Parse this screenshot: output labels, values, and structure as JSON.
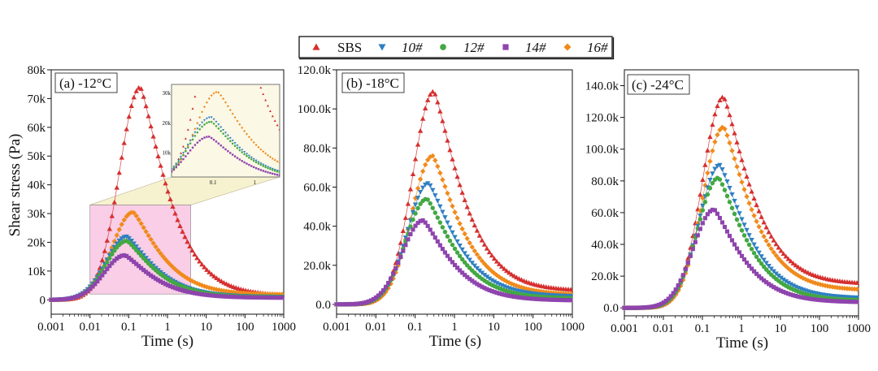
{
  "legend": {
    "items": [
      {
        "label": "SBS",
        "color": "#d62f2f",
        "marker": "triangle-up"
      },
      {
        "label": "10#",
        "color": "#2f7fc1",
        "marker": "triangle-down"
      },
      {
        "label": "12#",
        "color": "#43a843",
        "marker": "circle"
      },
      {
        "label": "14#",
        "color": "#8e44ad",
        "marker": "square"
      },
      {
        "label": "16#",
        "color": "#f08a1c",
        "marker": "diamond"
      }
    ]
  },
  "chart_data": [
    {
      "type": "scatter",
      "panel_label": "(a) -12°C",
      "xlabel": "Time (s)",
      "ylabel": "Shear stress (Pa)",
      "xscale": "log",
      "xlim": [
        0.001,
        1000
      ],
      "ylim": [
        -5000,
        80000
      ],
      "x_ticks": [
        "0.001",
        "0.01",
        "0.1",
        "1",
        "10",
        "100",
        "1000"
      ],
      "y_ticks": [
        {
          "value": 0,
          "label": "0"
        },
        {
          "value": 10000,
          "label": "10k"
        },
        {
          "value": 20000,
          "label": "20k"
        },
        {
          "value": 30000,
          "label": "30k"
        },
        {
          "value": 40000,
          "label": "40k"
        },
        {
          "value": 50000,
          "label": "50k"
        },
        {
          "value": 60000,
          "label": "60k"
        },
        {
          "value": 70000,
          "label": "70k"
        },
        {
          "value": 80000,
          "label": "80k"
        }
      ],
      "series": [
        {
          "name": "SBS",
          "peak": 74000,
          "peak_time": 0.2,
          "final": 1500
        },
        {
          "name": "10#",
          "peak": 22000,
          "peak_time": 0.09,
          "final": 1000
        },
        {
          "name": "12#",
          "peak": 20500,
          "peak_time": 0.09,
          "final": 900
        },
        {
          "name": "14#",
          "peak": 15500,
          "peak_time": 0.08,
          "final": 700
        },
        {
          "name": "16#",
          "peak": 30500,
          "peak_time": 0.13,
          "final": 1800
        }
      ],
      "highlight_box": {
        "x_range": [
          0.01,
          4
        ],
        "y_range": [
          2000,
          33000
        ]
      },
      "inset": {
        "x_ticks": [
          "0.1",
          "1"
        ],
        "y_ticks": [
          "10k",
          "20k",
          "30k"
        ]
      }
    },
    {
      "type": "scatter",
      "panel_label": "(b) -18°C",
      "xlabel": "Time (s)",
      "ylabel": "",
      "xscale": "log",
      "xlim": [
        0.001,
        1000
      ],
      "ylim": [
        -5000,
        120000
      ],
      "x_ticks": [
        "0.001",
        "0.01",
        "0.1",
        "1",
        "10",
        "100",
        "1000"
      ],
      "y_ticks": [
        {
          "value": 0,
          "label": "0.0"
        },
        {
          "value": 20000,
          "label": "20.0k"
        },
        {
          "value": 40000,
          "label": "40.0k"
        },
        {
          "value": 60000,
          "label": "60.0k"
        },
        {
          "value": 80000,
          "label": "80.0k"
        },
        {
          "value": 100000,
          "label": "100.0k"
        },
        {
          "value": 120000,
          "label": "120.0k"
        }
      ],
      "series": [
        {
          "name": "SBS",
          "peak": 109000,
          "peak_time": 0.3,
          "final": 7000
        },
        {
          "name": "10#",
          "peak": 62000,
          "peak_time": 0.22,
          "final": 4000
        },
        {
          "name": "12#",
          "peak": 54000,
          "peak_time": 0.2,
          "final": 3000
        },
        {
          "name": "14#",
          "peak": 43000,
          "peak_time": 0.16,
          "final": 2000
        },
        {
          "name": "16#",
          "peak": 76000,
          "peak_time": 0.28,
          "final": 5000
        }
      ]
    },
    {
      "type": "scatter",
      "panel_label": "(c) -24°C",
      "xlabel": "Time (s)",
      "ylabel": "",
      "xscale": "log",
      "xlim": [
        0.001,
        1000
      ],
      "ylim": [
        -5000,
        150000
      ],
      "x_ticks": [
        "0.001",
        "0.01",
        "0.1",
        "1",
        "10",
        "100",
        "1000"
      ],
      "y_ticks": [
        {
          "value": 0,
          "label": "0.0"
        },
        {
          "value": 20000,
          "label": "20.0k"
        },
        {
          "value": 40000,
          "label": "40.0k"
        },
        {
          "value": 60000,
          "label": "60.0k"
        },
        {
          "value": 80000,
          "label": "80.0k"
        },
        {
          "value": 100000,
          "label": "100.0k"
        },
        {
          "value": 120000,
          "label": "120.0k"
        },
        {
          "value": 140000,
          "label": "140.0k"
        }
      ],
      "series": [
        {
          "name": "SBS",
          "peak": 133000,
          "peak_time": 0.35,
          "final": 15000
        },
        {
          "name": "10#",
          "peak": 90000,
          "peak_time": 0.28,
          "final": 6000
        },
        {
          "name": "12#",
          "peak": 82000,
          "peak_time": 0.26,
          "final": 4500
        },
        {
          "name": "14#",
          "peak": 62000,
          "peak_time": 0.2,
          "final": 3500
        },
        {
          "name": "16#",
          "peak": 114000,
          "peak_time": 0.35,
          "final": 11000
        }
      ]
    }
  ]
}
